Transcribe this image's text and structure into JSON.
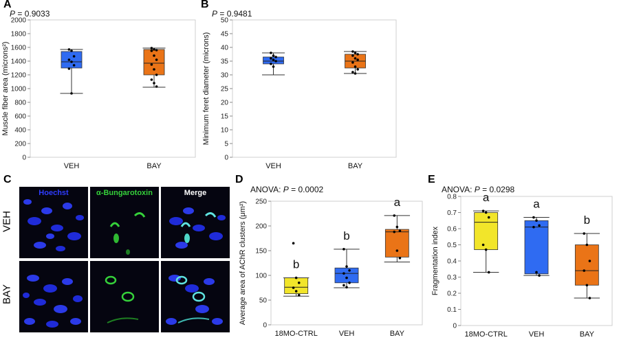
{
  "panels": [
    {
      "letter": "A"
    },
    {
      "letter": "B"
    },
    {
      "letter": "C"
    },
    {
      "letter": "D"
    },
    {
      "letter": "E"
    }
  ],
  "microscopy": {
    "columns": [
      "Hoechst",
      "α-Bungarotoxin",
      "Merge"
    ],
    "column_colors": [
      "#2f3cff",
      "#35d13a",
      "#ffffff"
    ],
    "rows": [
      "VEH",
      "BAY"
    ]
  },
  "chart_data": [
    {
      "panel": "A",
      "type": "box",
      "title": "P = 0.9033",
      "ylabel": "Muscle fiber area (microns²)",
      "ylim": [
        0,
        2000
      ],
      "yticks": [
        0,
        200,
        400,
        600,
        800,
        1000,
        1200,
        1400,
        1600,
        1800,
        2000
      ],
      "categories": [
        "VEH",
        "BAY"
      ],
      "colors": [
        "#2f6bf2",
        "#ea7417"
      ],
      "boxes": [
        {
          "min": 930,
          "q1": 1300,
          "median": 1390,
          "q3": 1540,
          "max": 1570
        },
        {
          "min": 1020,
          "q1": 1200,
          "median": 1370,
          "q3": 1570,
          "max": 1590
        }
      ],
      "points": [
        [
          1570,
          1550,
          1470,
          1420,
          1390,
          1340,
          1290,
          930
        ],
        [
          1590,
          1570,
          1560,
          1550,
          1480,
          1420,
          1350,
          1280,
          1200,
          1130,
          1080,
          1030
        ]
      ]
    },
    {
      "panel": "B",
      "type": "box",
      "title": "P = 0.9481",
      "ylabel": "Minimum feret diameter (microns)",
      "ylim": [
        0,
        50
      ],
      "yticks": [
        0,
        5,
        10,
        15,
        20,
        25,
        30,
        35,
        40,
        45,
        50
      ],
      "categories": [
        "VEH",
        "BAY"
      ],
      "colors": [
        "#2f6bf2",
        "#ea7417"
      ],
      "boxes": [
        {
          "min": 30,
          "q1": 34,
          "median": 35,
          "q3": 36.5,
          "max": 38
        },
        {
          "min": 30.5,
          "q1": 32.5,
          "median": 35,
          "q3": 37.5,
          "max": 38.5
        }
      ],
      "points": [
        [
          38,
          37,
          36.5,
          36,
          35.5,
          35,
          34,
          33
        ],
        [
          38.5,
          38,
          37.5,
          37,
          36,
          35.5,
          34.5,
          33,
          32,
          31,
          30.5
        ]
      ]
    },
    {
      "panel": "D",
      "type": "box",
      "title": "ANOVA: P = 0.0002",
      "ylabel": "Average area of AChR clusters (μm²)",
      "ylim": [
        0,
        250
      ],
      "yticks": [
        0,
        50,
        100,
        150,
        200,
        250
      ],
      "categories": [
        "18MO-CTRL",
        "VEH",
        "BAY"
      ],
      "colors": [
        "#f2e52a",
        "#2f6bf2",
        "#ea7417"
      ],
      "letters": [
        "b",
        "b",
        "a"
      ],
      "boxes": [
        {
          "min": 58,
          "q1": 63,
          "median": 76,
          "q3": 95,
          "max": 95
        },
        {
          "min": 75,
          "q1": 85,
          "median": 104,
          "q3": 115,
          "max": 153
        },
        {
          "min": 127,
          "q1": 137,
          "median": 188,
          "q3": 193,
          "max": 221
        }
      ],
      "points": [
        [
          165,
          95,
          85,
          75,
          68,
          60
        ],
        [
          153,
          118,
          110,
          104,
          95,
          85,
          80,
          76
        ],
        [
          221,
          198,
          190,
          188,
          150,
          135
        ]
      ]
    },
    {
      "panel": "E",
      "type": "box",
      "title": "ANOVA: P = 0.0298",
      "ylabel": "Fragmentation index",
      "ylim": [
        0,
        0.8
      ],
      "yticks": [
        0,
        0.1,
        0.2,
        0.3,
        0.4,
        0.5,
        0.6,
        0.7,
        0.8
      ],
      "categories": [
        "18MO-CTRL",
        "VEH",
        "BAY"
      ],
      "colors": [
        "#f2e52a",
        "#2f6bf2",
        "#ea7417"
      ],
      "letters": [
        "a",
        "a",
        "b"
      ],
      "boxes": [
        {
          "min": 0.33,
          "q1": 0.47,
          "median": 0.64,
          "q3": 0.7,
          "max": 0.71
        },
        {
          "min": 0.31,
          "q1": 0.32,
          "median": 0.61,
          "q3": 0.65,
          "max": 0.67
        },
        {
          "min": 0.17,
          "q1": 0.25,
          "median": 0.34,
          "q3": 0.5,
          "max": 0.57
        }
      ],
      "points": [
        [
          0.71,
          0.7,
          0.67,
          0.5,
          0.47,
          0.33
        ],
        [
          0.67,
          0.65,
          0.62,
          0.61,
          0.33,
          0.31
        ],
        [
          0.57,
          0.5,
          0.4,
          0.34,
          0.25,
          0.17
        ]
      ]
    }
  ]
}
